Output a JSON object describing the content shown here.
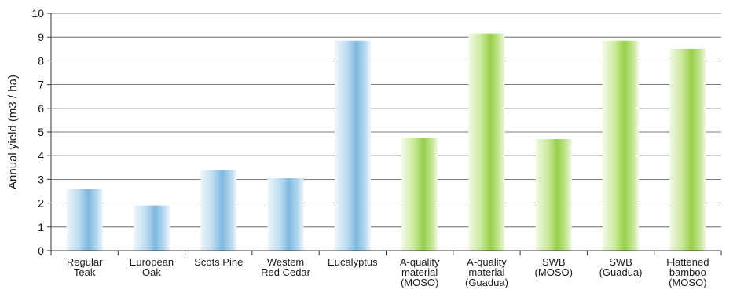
{
  "chart_data": {
    "type": "bar",
    "title": "",
    "xlabel": "",
    "ylabel": "Annual yield (m3 / ha)",
    "ylim": [
      0,
      10
    ],
    "yticks": [
      "0",
      "1",
      "2",
      "3",
      "4",
      "5",
      "6",
      "7",
      "8",
      "9",
      "10"
    ],
    "grid": true,
    "categories": [
      [
        "Regular",
        "Teak"
      ],
      [
        "European",
        "Oak"
      ],
      [
        "Scots Pine"
      ],
      [
        "Westem",
        "Red Cedar"
      ],
      [
        "Eucalyptus"
      ],
      [
        "A-quality",
        "material",
        "(MOSO)"
      ],
      [
        "A-quality",
        "material",
        "(Guadua)"
      ],
      [
        "SWB",
        "(MOSO)"
      ],
      [
        "SWB",
        "(Guadua)"
      ],
      [
        "Flattened",
        "bamboo",
        "(MOSO)"
      ]
    ],
    "values": [
      2.6,
      1.9,
      3.4,
      3.05,
      8.85,
      4.75,
      9.15,
      4.7,
      8.85,
      8.5
    ],
    "bar_groups": [
      "wood",
      "wood",
      "wood",
      "wood",
      "wood",
      "bamboo",
      "bamboo",
      "bamboo",
      "bamboo",
      "bamboo"
    ],
    "colors": {
      "wood": "#8fc3e6",
      "bamboo": "#a3d65a"
    }
  }
}
